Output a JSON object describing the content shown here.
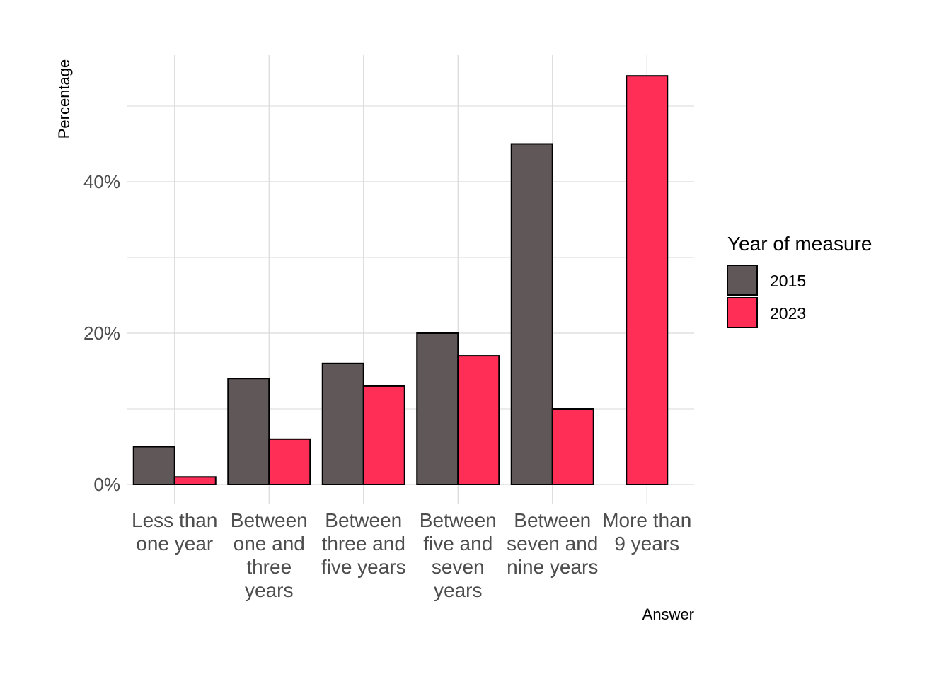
{
  "chart_data": {
    "type": "bar",
    "title": "",
    "xlabel": "Answer",
    "ylabel": "Percentage",
    "ylim": [
      0,
      57
    ],
    "y_ticks": [
      0,
      20,
      40
    ],
    "y_tick_labels": [
      "0%",
      "20%",
      "40%"
    ],
    "grid": true,
    "legend_position": "right",
    "legend_title": "Year of measure",
    "categories": [
      [
        "Less than",
        "one year"
      ],
      [
        "Between",
        "one and",
        "three",
        "years"
      ],
      [
        "Between",
        "three and",
        "five years"
      ],
      [
        "Between",
        "five and",
        "seven",
        "years"
      ],
      [
        "Between",
        "seven and",
        "nine years"
      ],
      [
        "More than",
        "9 years"
      ]
    ],
    "series": [
      {
        "name": "2015",
        "color": "#5f5758",
        "values": [
          5,
          14,
          16,
          20,
          45,
          null
        ]
      },
      {
        "name": "2023",
        "color": "#ff2e57",
        "values": [
          1,
          6,
          13,
          17,
          10,
          54
        ]
      }
    ]
  }
}
